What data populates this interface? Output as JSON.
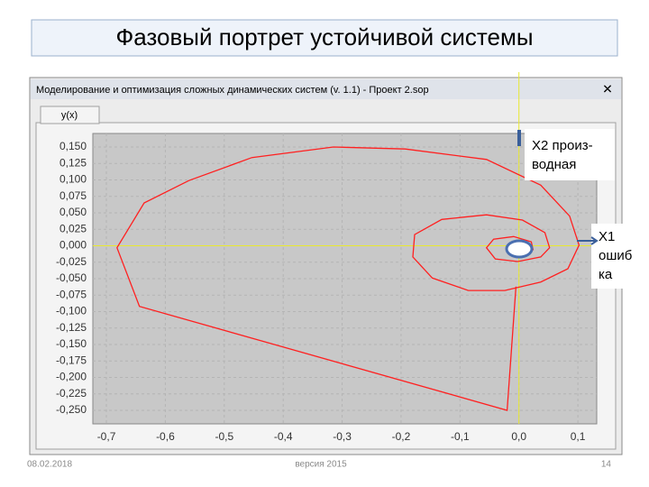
{
  "slide_title": "Фазовый портрет устойчивой системы",
  "window_title": "Моделирование и оптимизация сложных динамических систем (v. 1.1) - Проект 2.sop",
  "tab": "y(x)",
  "annotations": [
    {
      "lines": [
        "X2 произ-",
        "водная"
      ]
    },
    {
      "lines": [
        "X1",
        "ошиб",
        "ка"
      ]
    }
  ],
  "footer": {
    "date": "08.02.2018",
    "version": "версия 2015",
    "page": "14"
  },
  "chart_data": {
    "type": "line",
    "color": "#ff2020",
    "grid": true,
    "x": [
      -0.005,
      -0.02,
      -0.644,
      -0.682,
      -0.636,
      -0.56,
      -0.453,
      -0.315,
      -0.193,
      -0.055,
      0.037,
      0.086,
      0.102,
      0.083,
      0.037,
      -0.024,
      -0.086,
      -0.147,
      -0.18,
      -0.177,
      -0.131,
      -0.055,
      0.006,
      0.044,
      0.052,
      0.037,
      -0.002,
      -0.04,
      -0.055,
      -0.043,
      -0.009,
      0.021,
      0.024,
      0.003,
      -0.002
    ],
    "values": [
      -0.062,
      -0.25,
      -0.092,
      -0.003,
      0.065,
      0.099,
      0.134,
      0.15,
      0.147,
      0.131,
      0.092,
      0.045,
      0.001,
      -0.035,
      -0.055,
      -0.068,
      -0.068,
      -0.049,
      -0.017,
      0.017,
      0.04,
      0.047,
      0.039,
      0.02,
      -0.003,
      -0.017,
      -0.024,
      -0.02,
      -0.003,
      0.01,
      0.014,
      0.006,
      -0.006,
      -0.013,
      -0.008
    ],
    "xlim": [
      -0.723,
      0.132
    ],
    "ylim": [
      -0.2705,
      0.1705
    ],
    "xticks": [
      {
        "value": -0.7,
        "label": "-0,7"
      },
      {
        "value": -0.6,
        "label": "-0,6"
      },
      {
        "value": -0.5,
        "label": "-0,5"
      },
      {
        "value": -0.4,
        "label": "-0,4"
      },
      {
        "value": -0.3,
        "label": "-0,3"
      },
      {
        "value": -0.2,
        "label": "-0,2"
      },
      {
        "value": -0.1,
        "label": "-0,1"
      },
      {
        "value": 0,
        "label": "0,0"
      },
      {
        "value": 0.1,
        "label": "0,1"
      }
    ],
    "yticks": [
      {
        "value": 0.15,
        "label": "0,150"
      },
      {
        "value": 0.125,
        "label": "0,125"
      },
      {
        "value": 0.1,
        "label": "0,100"
      },
      {
        "value": 0.075,
        "label": "0,075"
      },
      {
        "value": 0.05,
        "label": "0,050"
      },
      {
        "value": 0.025,
        "label": "0,025"
      },
      {
        "value": 0,
        "label": "0,000"
      },
      {
        "value": -0.025,
        "label": "-0,025"
      },
      {
        "value": -0.05,
        "label": "-0,050"
      },
      {
        "value": -0.075,
        "label": "-0,075"
      },
      {
        "value": -0.1,
        "label": "-0,100"
      },
      {
        "value": -0.125,
        "label": "-0,125"
      },
      {
        "value": -0.15,
        "label": "-0,150"
      },
      {
        "value": -0.175,
        "label": "-0,175"
      },
      {
        "value": -0.2,
        "label": "-0,200"
      },
      {
        "value": -0.225,
        "label": "-0,225"
      },
      {
        "value": -0.25,
        "label": "-0,250"
      }
    ]
  }
}
